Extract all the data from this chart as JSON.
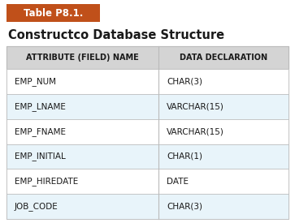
{
  "table_label": "Table P8.1.",
  "title": "Constructco Database Structure",
  "col_headers": [
    "ATTRIBUTE (FIELD) NAME",
    "DATA DECLARATION"
  ],
  "rows": [
    [
      "EMP_NUM",
      "CHAR(3)"
    ],
    [
      "EMP_LNAME",
      "VARCHAR(15)"
    ],
    [
      "EMP_FNAME",
      "VARCHAR(15)"
    ],
    [
      "EMP_INITIAL",
      "CHAR(1)"
    ],
    [
      "EMP_HIREDATE",
      "DATE"
    ],
    [
      "JOB_CODE",
      "CHAR(3)"
    ]
  ],
  "label_bg": "#C0501A",
  "label_text_color": "#FFFFFF",
  "header_bg": "#D4D4D4",
  "row_bg_even": "#FFFFFF",
  "row_bg_odd": "#E8F4FA",
  "border_color": "#BBBBBB",
  "title_color": "#1A1A1A",
  "fig_bg": "#FFFFFF"
}
